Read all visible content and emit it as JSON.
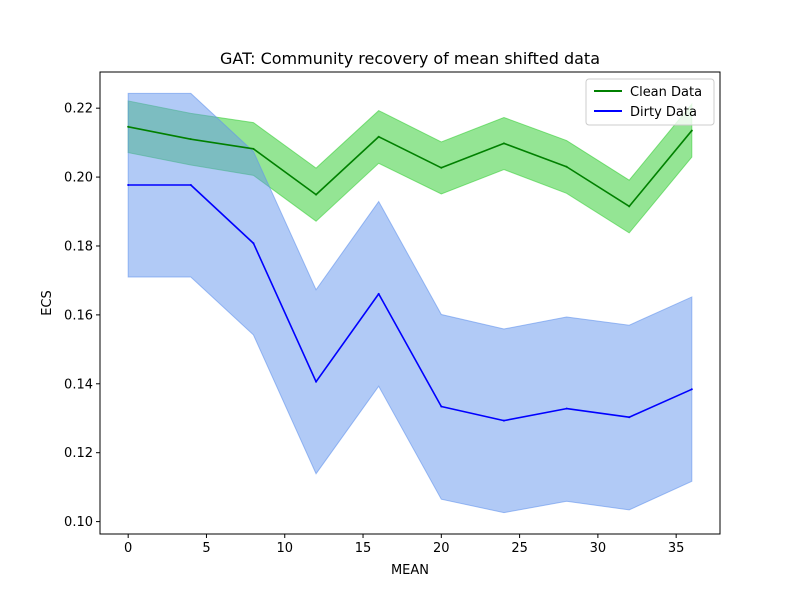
{
  "chart_data": {
    "type": "line",
    "title": "GAT: Community recovery of mean shifted data",
    "xlabel": "MEAN",
    "ylabel": "ECS",
    "xlim": [
      -1.8,
      37.8
    ],
    "ylim": [
      0.0964,
      0.2305
    ],
    "xticks": [
      0,
      5,
      10,
      15,
      20,
      25,
      30,
      35
    ],
    "yticks": [
      0.1,
      0.12,
      0.14,
      0.16,
      0.18,
      0.2,
      0.22
    ],
    "x": [
      0,
      4,
      8,
      12,
      16,
      20,
      24,
      28,
      32,
      36
    ],
    "grid": false,
    "legend_position": "top-right",
    "series": [
      {
        "name": "Clean Data",
        "color": "#008000",
        "band_color": "#3ccf3c",
        "values": [
          0.2146,
          0.211,
          0.2082,
          0.1949,
          0.2117,
          0.2027,
          0.2098,
          0.203,
          0.1915,
          0.2135
        ],
        "lower": [
          0.2071,
          0.2035,
          0.2005,
          0.1872,
          0.204,
          0.1951,
          0.2022,
          0.1953,
          0.1838,
          0.2058
        ],
        "upper": [
          0.2221,
          0.2185,
          0.2158,
          0.2026,
          0.2193,
          0.2102,
          0.2173,
          0.2106,
          0.1991,
          0.2212
        ]
      },
      {
        "name": "Dirty Data",
        "color": "#0000ff",
        "band_color": "#6495ed",
        "values": [
          0.1977,
          0.1977,
          0.1808,
          0.1406,
          0.1661,
          0.1334,
          0.1293,
          0.1328,
          0.1303,
          0.1384
        ],
        "lower": [
          0.171,
          0.171,
          0.1542,
          0.1139,
          0.1393,
          0.1065,
          0.1026,
          0.1059,
          0.1034,
          0.1117
        ],
        "upper": [
          0.2243,
          0.2243,
          0.2074,
          0.1673,
          0.1929,
          0.1601,
          0.1559,
          0.1594,
          0.157,
          0.1652
        ]
      }
    ]
  }
}
